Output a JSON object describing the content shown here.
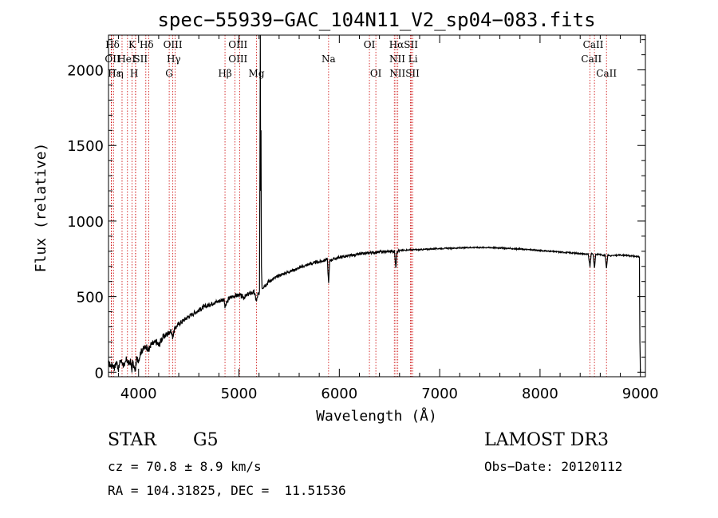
{
  "chart_data": {
    "type": "line",
    "title": "spec−55939−GAC_104N11_V2_sp04−083.fits",
    "xlabel": "Wavelength (Å)",
    "ylabel": "Flux (relative)",
    "xlim": [
      3700,
      9050
    ],
    "ylim": [
      -30,
      2230
    ],
    "x_ticks": [
      4000,
      5000,
      6000,
      7000,
      8000,
      9000
    ],
    "y_ticks": [
      0,
      500,
      1000,
      1500,
      2000
    ],
    "series": [
      {
        "name": "spectrum",
        "x": [
          3700,
          3720,
          3740,
          3760,
          3780,
          3800,
          3820,
          3840,
          3860,
          3880,
          3900,
          3920,
          3933,
          3940,
          3960,
          3968,
          3980,
          4000,
          4020,
          4040,
          4060,
          4080,
          4102,
          4120,
          4150,
          4180,
          4200,
          4230,
          4260,
          4300,
          4320,
          4340,
          4360,
          4380,
          4400,
          4450,
          4500,
          4550,
          4600,
          4650,
          4700,
          4750,
          4800,
          4850,
          4861,
          4900,
          4950,
          5000,
          5050,
          5100,
          5150,
          5175,
          5190,
          5200,
          5205,
          5210,
          5213,
          5216,
          5220,
          5224,
          5230,
          5300,
          5400,
          5500,
          5600,
          5700,
          5800,
          5850,
          5880,
          5893,
          5905,
          5950,
          6000,
          6100,
          6200,
          6300,
          6400,
          6500,
          6550,
          6563,
          6575,
          6600,
          6700,
          6800,
          6900,
          7000,
          7100,
          7200,
          7300,
          7400,
          7500,
          7600,
          7700,
          7800,
          7900,
          8000,
          8100,
          8200,
          8300,
          8400,
          8480,
          8498,
          8510,
          8530,
          8542,
          8555,
          8600,
          8650,
          8662,
          8675,
          8700,
          8800,
          8900,
          8980,
          8990,
          8995,
          9000
        ],
        "values": [
          60,
          45,
          50,
          30,
          70,
          20,
          80,
          60,
          40,
          90,
          55,
          70,
          10,
          65,
          20,
          15,
          90,
          80,
          130,
          150,
          160,
          170,
          140,
          180,
          190,
          200,
          175,
          220,
          240,
          260,
          275,
          230,
          290,
          305,
          320,
          345,
          370,
          390,
          410,
          430,
          445,
          460,
          470,
          485,
          430,
          490,
          505,
          510,
          495,
          520,
          530,
          470,
          520,
          510,
          540,
          1550,
          2230,
          1200,
          1600,
          700,
          560,
          600,
          640,
          665,
          690,
          715,
          730,
          740,
          750,
          590,
          740,
          750,
          760,
          770,
          780,
          790,
          795,
          800,
          800,
          690,
          800,
          805,
          810,
          810,
          815,
          818,
          820,
          822,
          825,
          825,
          825,
          822,
          818,
          815,
          810,
          805,
          800,
          795,
          790,
          785,
          780,
          700,
          785,
          780,
          690,
          780,
          780,
          770,
          690,
          775,
          770,
          775,
          770,
          765,
          760,
          200,
          0
        ]
      }
    ],
    "spectral_lines": [
      {
        "name": "Hδ",
        "wavelength": 3727
      },
      {
        "name": "OII",
        "wavelength": 3730
      },
      {
        "name": "Hε",
        "wavelength": 3750
      },
      {
        "name": "Hη",
        "wavelength": 3835
      },
      {
        "name": "He",
        "wavelength": 3889
      },
      {
        "name": "K",
        "wavelength": 3934
      },
      {
        "name": "I",
        "wavelength": 3969
      },
      {
        "name": "H",
        "wavelength": 3970
      },
      {
        "name": "SII",
        "wavelength": 4072
      },
      {
        "name": "Hδ",
        "wavelength": 4102
      },
      {
        "name": "G",
        "wavelength": 4305
      },
      {
        "name": "OIII",
        "wavelength": 4341
      },
      {
        "name": "Hγ",
        "wavelength": 4363
      },
      {
        "name": "Hβ",
        "wavelength": 4861
      },
      {
        "name": "OIII",
        "wavelength": 4959
      },
      {
        "name": "OIII",
        "wavelength": 5007
      },
      {
        "name": "Mg",
        "wavelength": 5175
      },
      {
        "name": "Na",
        "wavelength": 5893
      },
      {
        "name": "OI",
        "wavelength": 6300
      },
      {
        "name": "OI",
        "wavelength": 6364
      },
      {
        "name": "NII",
        "wavelength": 6548
      },
      {
        "name": "Hα",
        "wavelength": 6563
      },
      {
        "name": "NII",
        "wavelength": 6583
      },
      {
        "name": "SII",
        "wavelength": 6716
      },
      {
        "name": "Li",
        "wavelength": 6708
      },
      {
        "name": "SII",
        "wavelength": 6731
      },
      {
        "name": "CaII",
        "wavelength": 8498
      },
      {
        "name": "CaII",
        "wavelength": 8542
      },
      {
        "name": "CaII",
        "wavelength": 8662
      }
    ],
    "line_labels": [
      {
        "text": "Hδ",
        "wavelength": 3740,
        "row": 0
      },
      {
        "text": "K",
        "wavelength": 3934,
        "row": 0
      },
      {
        "text": "Hδ",
        "wavelength": 4080,
        "row": 0
      },
      {
        "text": "OIII",
        "wavelength": 4341,
        "row": 0
      },
      {
        "text": "OIII",
        "wavelength": 4990,
        "row": 0
      },
      {
        "text": "OI",
        "wavelength": 6300,
        "row": 0
      },
      {
        "text": "HαSII",
        "wavelength": 6640,
        "row": 0
      },
      {
        "text": "CaII",
        "wavelength": 8530,
        "row": 0
      },
      {
        "text": "OII",
        "wavelength": 3740,
        "row": 1
      },
      {
        "text": "He",
        "wavelength": 3860,
        "row": 1
      },
      {
        "text": "I",
        "wavelength": 3952,
        "row": 1
      },
      {
        "text": "SII",
        "wavelength": 4020,
        "row": 1
      },
      {
        "text": "Hγ",
        "wavelength": 4350,
        "row": 1
      },
      {
        "text": "OIII",
        "wavelength": 4990,
        "row": 1
      },
      {
        "text": "Na",
        "wavelength": 5893,
        "row": 1
      },
      {
        "text": "NII Li",
        "wavelength": 6640,
        "row": 1
      },
      {
        "text": "CaII",
        "wavelength": 8512,
        "row": 1
      },
      {
        "text": "Hε",
        "wavelength": 3760,
        "row": 2
      },
      {
        "text": "η",
        "wavelength": 3820,
        "row": 2
      },
      {
        "text": "H",
        "wavelength": 3955,
        "row": 2
      },
      {
        "text": "G",
        "wavelength": 4305,
        "row": 2
      },
      {
        "text": "Hβ",
        "wavelength": 4861,
        "row": 2
      },
      {
        "text": "Mg",
        "wavelength": 5175,
        "row": 2
      },
      {
        "text": "OI",
        "wavelength": 6364,
        "row": 2
      },
      {
        "text": "NIISII",
        "wavelength": 6650,
        "row": 2
      },
      {
        "text": "CaII",
        "wavelength": 8662,
        "row": 2
      }
    ]
  },
  "info": {
    "object_class": "STAR",
    "subclass": "G5",
    "survey": "LAMOST DR3",
    "cz": "cz = 70.8 ± 8.9 km/s",
    "obs_date": "Obs−Date: 20120112",
    "coords": "RA = 104.31825, DEC =  11.51536"
  },
  "colors": {
    "spectrum": "#000000",
    "line_marker": "#cc0000",
    "axes": "#000000"
  }
}
